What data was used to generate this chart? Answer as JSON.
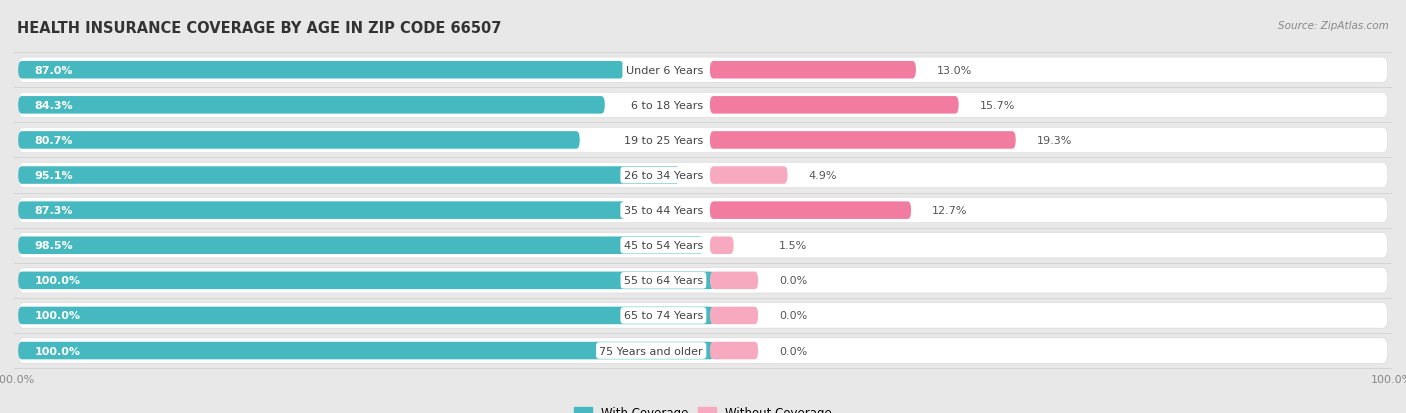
{
  "title": "HEALTH INSURANCE COVERAGE BY AGE IN ZIP CODE 66507",
  "source": "Source: ZipAtlas.com",
  "categories": [
    "Under 6 Years",
    "6 to 18 Years",
    "19 to 25 Years",
    "26 to 34 Years",
    "35 to 44 Years",
    "45 to 54 Years",
    "55 to 64 Years",
    "65 to 74 Years",
    "75 Years and older"
  ],
  "with_coverage": [
    87.0,
    84.3,
    80.7,
    95.1,
    87.3,
    98.5,
    100.0,
    100.0,
    100.0
  ],
  "without_coverage": [
    13.0,
    15.7,
    19.3,
    4.9,
    12.7,
    1.5,
    0.0,
    0.0,
    0.0
  ],
  "color_with": "#45B8C0",
  "color_without": "#F27BA0",
  "color_without_light": "#F7AABF",
  "background_color": "#e8e8e8",
  "row_bg_color": "#f0f0f0",
  "title_fontsize": 10.5,
  "source_fontsize": 7.5,
  "bar_label_fontsize": 8,
  "cat_label_fontsize": 8,
  "pct_label_fontsize": 8,
  "tick_fontsize": 8,
  "legend_fontsize": 8.5
}
